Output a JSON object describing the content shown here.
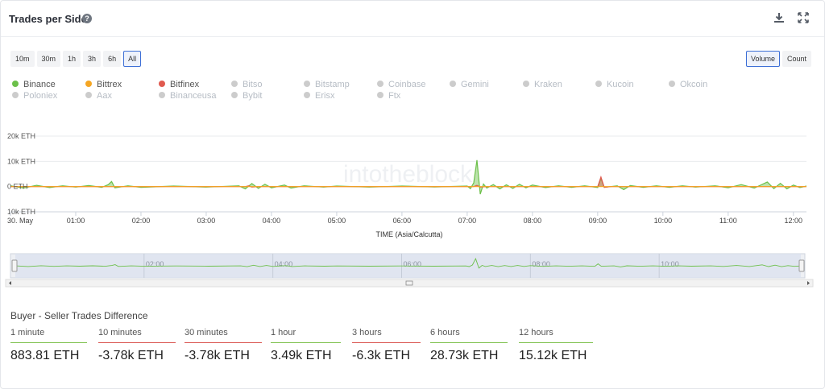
{
  "header": {
    "title": "Trades per Side",
    "help_icon": "?",
    "download_icon": "download-icon",
    "expand_icon": "expand-icon"
  },
  "time_buttons": [
    {
      "label": "10m",
      "active": false
    },
    {
      "label": "30m",
      "active": false
    },
    {
      "label": "1h",
      "active": false
    },
    {
      "label": "3h",
      "active": false
    },
    {
      "label": "6h",
      "active": false
    },
    {
      "label": "All",
      "active": true
    }
  ],
  "mode_buttons": [
    {
      "label": "Volume",
      "active": true
    },
    {
      "label": "Count",
      "active": false
    }
  ],
  "legend": [
    {
      "label": "Binance",
      "color": "#6cc04a",
      "active": true
    },
    {
      "label": "Bittrex",
      "color": "#f5a623",
      "active": true
    },
    {
      "label": "Bitfinex",
      "color": "#e05a4f",
      "active": true
    },
    {
      "label": "Bitso",
      "color": "#cccccc",
      "active": false
    },
    {
      "label": "Bitstamp",
      "color": "#cccccc",
      "active": false
    },
    {
      "label": "Coinbase",
      "color": "#cccccc",
      "active": false
    },
    {
      "label": "Gemini",
      "color": "#cccccc",
      "active": false
    },
    {
      "label": "Kraken",
      "color": "#cccccc",
      "active": false
    },
    {
      "label": "Kucoin",
      "color": "#cccccc",
      "active": false
    },
    {
      "label": "Okcoin",
      "color": "#cccccc",
      "active": false
    },
    {
      "label": "Poloniex",
      "color": "#cccccc",
      "active": false
    },
    {
      "label": "Aax",
      "color": "#cccccc",
      "active": false
    },
    {
      "label": "Binanceusa",
      "color": "#cccccc",
      "active": false
    },
    {
      "label": "Bybit",
      "color": "#cccccc",
      "active": false
    },
    {
      "label": "Erisx",
      "color": "#cccccc",
      "active": false
    },
    {
      "label": "Ftx",
      "color": "#cccccc",
      "active": false
    }
  ],
  "watermark": "intotheblock",
  "chart_data": {
    "type": "line",
    "xlabel": "TIME (Asia/Calcutta)",
    "ylabel": "",
    "ylim": [
      -10000,
      20000
    ],
    "yticks": [
      {
        "value": 20000,
        "label": "20k ETH"
      },
      {
        "value": 10000,
        "label": "10k ETH"
      },
      {
        "value": 0,
        "label": "0 ETH"
      },
      {
        "value": -10000,
        "label": "10k ETH"
      }
    ],
    "xlim": [
      0,
      12.2
    ],
    "xticks": [
      {
        "value": 0,
        "label": "30. May"
      },
      {
        "value": 1,
        "label": "01:00"
      },
      {
        "value": 2,
        "label": "02:00"
      },
      {
        "value": 3,
        "label": "03:00"
      },
      {
        "value": 4,
        "label": "04:00"
      },
      {
        "value": 5,
        "label": "05:00"
      },
      {
        "value": 6,
        "label": "06:00"
      },
      {
        "value": 7,
        "label": "07:00"
      },
      {
        "value": 8,
        "label": "08:00"
      },
      {
        "value": 9,
        "label": "09:00"
      },
      {
        "value": 10,
        "label": "10:00"
      },
      {
        "value": 11,
        "label": "11:00"
      },
      {
        "value": 12,
        "label": "12:00"
      }
    ],
    "series": [
      {
        "name": "Binance",
        "color": "#6cc04a",
        "points": [
          [
            0.0,
            300
          ],
          [
            0.2,
            -600
          ],
          [
            0.4,
            500
          ],
          [
            0.6,
            -400
          ],
          [
            0.8,
            300
          ],
          [
            1.0,
            -200
          ],
          [
            1.2,
            400
          ],
          [
            1.4,
            -300
          ],
          [
            1.5,
            800
          ],
          [
            1.55,
            2000
          ],
          [
            1.6,
            -500
          ],
          [
            1.8,
            300
          ],
          [
            2.0,
            -300
          ],
          [
            2.5,
            200
          ],
          [
            3.0,
            -200
          ],
          [
            3.5,
            300
          ],
          [
            3.6,
            -900
          ],
          [
            3.7,
            1200
          ],
          [
            3.8,
            -700
          ],
          [
            3.9,
            900
          ],
          [
            4.0,
            -500
          ],
          [
            4.2,
            600
          ],
          [
            4.3,
            -600
          ],
          [
            4.5,
            300
          ],
          [
            4.8,
            -200
          ],
          [
            5.0,
            200
          ],
          [
            5.5,
            -200
          ],
          [
            6.0,
            200
          ],
          [
            6.5,
            -150
          ],
          [
            7.0,
            200
          ],
          [
            7.05,
            -800
          ],
          [
            7.1,
            1500
          ],
          [
            7.15,
            10500
          ],
          [
            7.2,
            -3000
          ],
          [
            7.25,
            1000
          ],
          [
            7.3,
            -600
          ],
          [
            7.4,
            800
          ],
          [
            7.5,
            -900
          ],
          [
            7.6,
            700
          ],
          [
            7.7,
            -700
          ],
          [
            7.8,
            900
          ],
          [
            7.9,
            -500
          ],
          [
            8.0,
            600
          ],
          [
            8.2,
            -400
          ],
          [
            8.4,
            300
          ],
          [
            8.6,
            -300
          ],
          [
            8.8,
            300
          ],
          [
            9.0,
            -400
          ],
          [
            9.05,
            3200
          ],
          [
            9.1,
            -300
          ],
          [
            9.3,
            300
          ],
          [
            9.4,
            -1200
          ],
          [
            9.5,
            400
          ],
          [
            9.7,
            -300
          ],
          [
            9.9,
            300
          ],
          [
            10.1,
            -300
          ],
          [
            10.3,
            300
          ],
          [
            10.5,
            -200
          ],
          [
            10.8,
            300
          ],
          [
            11.0,
            -500
          ],
          [
            11.2,
            800
          ],
          [
            11.4,
            -600
          ],
          [
            11.6,
            1800
          ],
          [
            11.7,
            -800
          ],
          [
            11.8,
            1300
          ],
          [
            11.9,
            -900
          ],
          [
            12.0,
            600
          ],
          [
            12.1,
            -400
          ],
          [
            12.2,
            200
          ]
        ]
      },
      {
        "name": "Bitfinex",
        "color": "#e05a4f",
        "points": [
          [
            0.0,
            0
          ],
          [
            3.6,
            0
          ],
          [
            3.65,
            300
          ],
          [
            3.7,
            -200
          ],
          [
            3.8,
            0
          ],
          [
            7.1,
            0
          ],
          [
            7.15,
            500
          ],
          [
            7.2,
            -200
          ],
          [
            7.3,
            0
          ],
          [
            9.0,
            0
          ],
          [
            9.05,
            3800
          ],
          [
            9.1,
            -300
          ],
          [
            9.2,
            0
          ],
          [
            12.2,
            0
          ]
        ]
      },
      {
        "name": "Bittrex",
        "color": "#f5a623",
        "points": [
          [
            0.0,
            0
          ],
          [
            12.2,
            0
          ]
        ]
      }
    ],
    "navigator_labels": [
      "02:00",
      "04:00",
      "06:00",
      "08:00",
      "10:00"
    ]
  },
  "stats": {
    "title": "Buyer - Seller Trades Difference",
    "items": [
      {
        "label": "1 minute",
        "value": "883.81 ETH",
        "sign": "pos"
      },
      {
        "label": "10 minutes",
        "value": "-3.78k ETH",
        "sign": "neg"
      },
      {
        "label": "30 minutes",
        "value": "-3.78k ETH",
        "sign": "neg"
      },
      {
        "label": "1 hour",
        "value": "3.49k ETH",
        "sign": "pos"
      },
      {
        "label": "3 hours",
        "value": "-6.3k ETH",
        "sign": "neg"
      },
      {
        "label": "6 hours",
        "value": "28.73k ETH",
        "sign": "pos"
      },
      {
        "label": "12 hours",
        "value": "15.12k ETH",
        "sign": "pos"
      }
    ]
  }
}
